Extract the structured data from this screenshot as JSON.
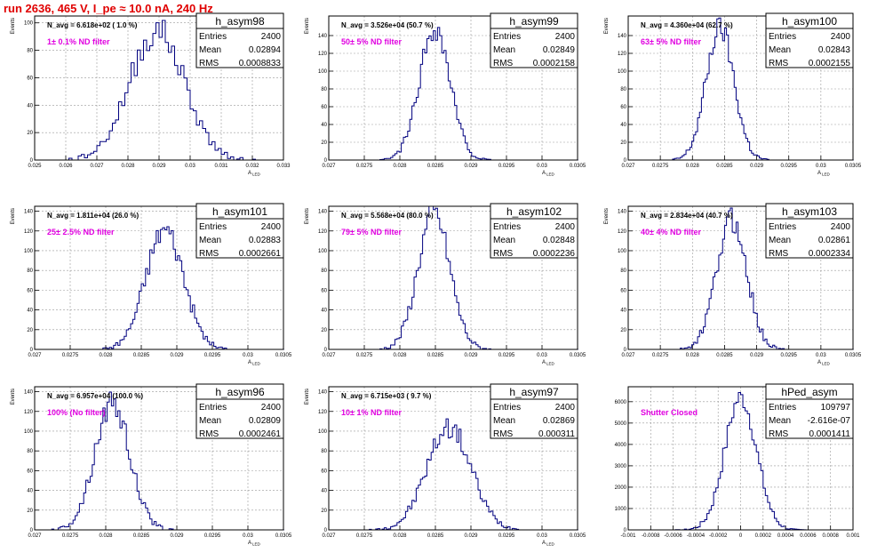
{
  "page": {
    "title": "run 2636,   465 V, I_pe ≈ 10.0 nA, 240 Hz"
  },
  "colors": {
    "histogram": "#00007f",
    "annotation": "#e000e0",
    "title": "#e00000",
    "grid": "#999999"
  },
  "chart_data": [
    {
      "type": "bar",
      "name": "h_asym98",
      "ylabel": "Events",
      "xlabel": "A_LED",
      "xlim": [
        0.025,
        0.033
      ],
      "ylim": [
        0,
        105
      ],
      "x_ticks": [
        0.025,
        0.026,
        0.027,
        0.028,
        0.029,
        0.03,
        0.031,
        0.032,
        0.033
      ],
      "x_tick_labels": [
        "0.025",
        "0.026",
        "0.027",
        "0.028",
        "0.029",
        "0.03",
        "0.031",
        "0.032",
        "0.033"
      ],
      "y_ticks": [
        0,
        20,
        40,
        60,
        80,
        100
      ],
      "y_tick_labels": [
        "0",
        "20",
        "40",
        "60",
        "80",
        "100"
      ],
      "gauss": {
        "mean": 0.02894,
        "rms": 0.00088,
        "peak": 94,
        "binw": 0.0001,
        "seed": 98
      },
      "stats": {
        "entries_label": "Entries",
        "entries": "2400",
        "mean_label": "Mean",
        "mean": "0.02894",
        "rms_label": "RMS",
        "rms": "0.0008833"
      },
      "navg": "N_avg = 6.618e+02 ( 1.0 %)",
      "filter": "1± 0.1% ND filter"
    },
    {
      "type": "bar",
      "name": "h_asym99",
      "ylabel": "Events",
      "xlabel": "A_LED",
      "xlim": [
        0.027,
        0.0305
      ],
      "ylim": [
        0,
        162
      ],
      "x_ticks": [
        0.027,
        0.0275,
        0.028,
        0.0285,
        0.029,
        0.0295,
        0.03,
        0.0305
      ],
      "x_tick_labels": [
        "0.027",
        "0.0275",
        "0.028",
        "0.0285",
        "0.029",
        "0.0295",
        "0.03",
        "0.0305"
      ],
      "y_ticks": [
        0,
        20,
        40,
        60,
        80,
        100,
        120,
        140
      ],
      "y_tick_labels": [
        "0",
        "20",
        "40",
        "60",
        "80",
        "100",
        "120",
        "140"
      ],
      "gauss": {
        "mean": 0.02849,
        "rms": 0.000216,
        "peak": 148,
        "binw": 3e-05,
        "seed": 99
      },
      "stats": {
        "entries_label": "Entries",
        "entries": "2400",
        "mean_label": "Mean",
        "mean": "0.02849",
        "rms_label": "RMS",
        "rms": "0.0002158"
      },
      "navg": "N_avg = 3.526e+04 (50.7 %)",
      "filter": "50± 5% ND filter"
    },
    {
      "type": "bar",
      "name": "h_asym100",
      "ylabel": "Events",
      "xlabel": "A_LED",
      "xlim": [
        0.027,
        0.0305
      ],
      "ylim": [
        0,
        162
      ],
      "x_ticks": [
        0.027,
        0.0275,
        0.028,
        0.0285,
        0.029,
        0.0295,
        0.03,
        0.0305
      ],
      "x_tick_labels": [
        "0.027",
        "0.0275",
        "0.028",
        "0.0285",
        "0.029",
        "0.0295",
        "0.03",
        "0.0305"
      ],
      "y_ticks": [
        0,
        20,
        40,
        60,
        80,
        100,
        120,
        140
      ],
      "y_tick_labels": [
        "0",
        "20",
        "40",
        "60",
        "80",
        "100",
        "120",
        "140"
      ],
      "gauss": {
        "mean": 0.02843,
        "rms": 0.000216,
        "peak": 148,
        "binw": 3e-05,
        "seed": 100
      },
      "stats": {
        "entries_label": "Entries",
        "entries": "2400",
        "mean_label": "Mean",
        "mean": "0.02843",
        "rms_label": "RMS",
        "rms": "0.0002155"
      },
      "navg": "N_avg = 4.360e+04 (62.7 %)",
      "filter": "63± 5% ND filter"
    },
    {
      "type": "bar",
      "name": "h_asym101",
      "ylabel": "Events",
      "xlabel": "A_LED",
      "xlim": [
        0.027,
        0.0305
      ],
      "ylim": [
        0,
        145
      ],
      "x_ticks": [
        0.027,
        0.0275,
        0.028,
        0.0285,
        0.029,
        0.0295,
        0.03,
        0.0305
      ],
      "x_tick_labels": [
        "0.027",
        "0.0275",
        "0.028",
        "0.0285",
        "0.029",
        "0.0295",
        "0.03",
        "0.0305"
      ],
      "y_ticks": [
        0,
        20,
        40,
        60,
        80,
        100,
        120,
        140
      ],
      "y_tick_labels": [
        "0",
        "20",
        "40",
        "60",
        "80",
        "100",
        "120",
        "140"
      ],
      "gauss": {
        "mean": 0.02883,
        "rms": 0.000266,
        "peak": 122,
        "binw": 3e-05,
        "seed": 101
      },
      "stats": {
        "entries_label": "Entries",
        "entries": "2400",
        "mean_label": "Mean",
        "mean": "0.02883",
        "rms_label": "RMS",
        "rms": "0.0002661"
      },
      "navg": "N_avg = 1.811e+04 (26.0 %)",
      "filter": "25± 2.5% ND filter"
    },
    {
      "type": "bar",
      "name": "h_asym102",
      "ylabel": "Events",
      "xlabel": "A_LED",
      "xlim": [
        0.027,
        0.0305
      ],
      "ylim": [
        0,
        145
      ],
      "x_ticks": [
        0.027,
        0.0275,
        0.028,
        0.0285,
        0.029,
        0.0295,
        0.03,
        0.0305
      ],
      "x_tick_labels": [
        "0.027",
        "0.0275",
        "0.028",
        "0.0285",
        "0.029",
        "0.0295",
        "0.03",
        "0.0305"
      ],
      "y_ticks": [
        0,
        20,
        40,
        60,
        80,
        100,
        120,
        140
      ],
      "y_tick_labels": [
        "0",
        "20",
        "40",
        "60",
        "80",
        "100",
        "120",
        "140"
      ],
      "gauss": {
        "mean": 0.02848,
        "rms": 0.000224,
        "peak": 138,
        "binw": 3e-05,
        "seed": 102
      },
      "stats": {
        "entries_label": "Entries",
        "entries": "2400",
        "mean_label": "Mean",
        "mean": "0.02848",
        "rms_label": "RMS",
        "rms": "0.0002236"
      },
      "navg": "N_avg = 5.568e+04 (80.0 %)",
      "filter": "79± 5% ND filter"
    },
    {
      "type": "bar",
      "name": "h_asym103",
      "ylabel": "Events",
      "xlabel": "A_LED",
      "xlim": [
        0.027,
        0.0305
      ],
      "ylim": [
        0,
        145
      ],
      "x_ticks": [
        0.027,
        0.0275,
        0.028,
        0.0285,
        0.029,
        0.0295,
        0.03,
        0.0305
      ],
      "x_tick_labels": [
        "0.027",
        "0.0275",
        "0.028",
        "0.0285",
        "0.029",
        "0.0295",
        "0.03",
        "0.0305"
      ],
      "y_ticks": [
        0,
        20,
        40,
        60,
        80,
        100,
        120,
        140
      ],
      "y_tick_labels": [
        "0",
        "20",
        "40",
        "60",
        "80",
        "100",
        "120",
        "140"
      ],
      "gauss": {
        "mean": 0.02861,
        "rms": 0.000233,
        "peak": 132,
        "binw": 3e-05,
        "seed": 103
      },
      "stats": {
        "entries_label": "Entries",
        "entries": "2400",
        "mean_label": "Mean",
        "mean": "0.02861",
        "rms_label": "RMS",
        "rms": "0.0002334"
      },
      "navg": "N_avg = 2.834e+04 (40.7 %)",
      "filter": "40± 4% ND filter"
    },
    {
      "type": "bar",
      "name": "h_asym96",
      "ylabel": "Events",
      "xlabel": "A_LED",
      "xlim": [
        0.027,
        0.0305
      ],
      "ylim": [
        0,
        145
      ],
      "x_ticks": [
        0.027,
        0.0275,
        0.028,
        0.0285,
        0.029,
        0.0295,
        0.03,
        0.0305
      ],
      "x_tick_labels": [
        "0.027",
        "0.0275",
        "0.028",
        "0.0285",
        "0.029",
        "0.0295",
        "0.03",
        "0.0305"
      ],
      "y_ticks": [
        0,
        20,
        40,
        60,
        80,
        100,
        120,
        140
      ],
      "y_tick_labels": [
        "0",
        "20",
        "40",
        "60",
        "80",
        "100",
        "120",
        "140"
      ],
      "gauss": {
        "mean": 0.02809,
        "rms": 0.000246,
        "peak": 128,
        "binw": 3e-05,
        "seed": 96
      },
      "stats": {
        "entries_label": "Entries",
        "entries": "2400",
        "mean_label": "Mean",
        "mean": "0.02809",
        "rms_label": "RMS",
        "rms": "0.0002461"
      },
      "navg": "N_avg = 6.957e+04 (100.0 %)",
      "filter": "100% (No filter)"
    },
    {
      "type": "bar",
      "name": "h_asym97",
      "ylabel": "Events",
      "xlabel": "A_LED",
      "xlim": [
        0.027,
        0.0305
      ],
      "ylim": [
        0,
        145
      ],
      "x_ticks": [
        0.027,
        0.0275,
        0.028,
        0.0285,
        0.029,
        0.0295,
        0.03,
        0.0305
      ],
      "x_tick_labels": [
        "0.027",
        "0.0275",
        "0.028",
        "0.0285",
        "0.029",
        "0.0295",
        "0.03",
        "0.0305"
      ],
      "y_ticks": [
        0,
        20,
        40,
        60,
        80,
        100,
        120,
        140
      ],
      "y_tick_labels": [
        "0",
        "20",
        "40",
        "60",
        "80",
        "100",
        "120",
        "140"
      ],
      "gauss": {
        "mean": 0.02869,
        "rms": 0.000311,
        "peak": 104,
        "binw": 3e-05,
        "seed": 97
      },
      "stats": {
        "entries_label": "Entries",
        "entries": "2400",
        "mean_label": "Mean",
        "mean": "0.02869",
        "rms_label": "RMS",
        "rms": "0.000311"
      },
      "navg": "N_avg = 6.715e+03 ( 9.7 %)",
      "filter": "10± 1% ND filter"
    },
    {
      "type": "bar",
      "name": "hPed_asym",
      "ylabel": "",
      "xlabel": "",
      "xlim": [
        -0.001,
        0.001
      ],
      "ylim": [
        0,
        6700
      ],
      "x_ticks": [
        -0.001,
        -0.0008,
        -0.0006,
        -0.0004,
        -0.0002,
        0,
        0.0002,
        0.0004,
        0.0006,
        0.0008,
        0.001
      ],
      "x_tick_labels": [
        "-0.001",
        "-0.0008",
        "-0.0006",
        "-0.0004",
        "-0.0002",
        "0",
        "0.0002",
        "0.0004",
        "0.0006",
        "0.0008",
        "0.001"
      ],
      "y_ticks": [
        0,
        1000,
        2000,
        3000,
        4000,
        5000,
        6000
      ],
      "y_tick_labels": [
        "0",
        "1000",
        "2000",
        "3000",
        "4000",
        "5000",
        "6000"
      ],
      "gauss": {
        "mean": 0.0,
        "rms": 0.000141,
        "peak": 6200,
        "binw": 2e-05,
        "seed": 7
      },
      "stats": {
        "entries_label": "Entries",
        "entries": "109797",
        "mean_label": "Mean",
        "mean": "-2.616e-07",
        "rms_label": "RMS",
        "rms": "0.0001411"
      },
      "navg": "",
      "filter": "Shutter Closed"
    }
  ]
}
